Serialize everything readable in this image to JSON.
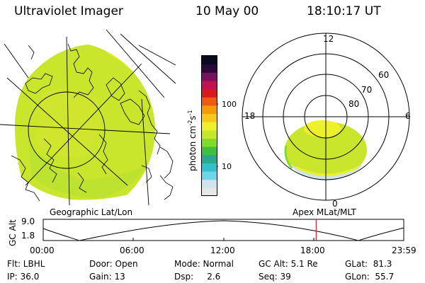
{
  "header": {
    "instrument": "Ultraviolet Imager",
    "date": "10 May 00",
    "time": "18:10:17 UT"
  },
  "colorbar": {
    "unit_label": "photon cm",
    "unit_exp1": "-2",
    "unit_s": "s",
    "unit_exp2": "-1",
    "tick_100": "100",
    "tick_10": "10",
    "colors": [
      "#e6e6e6",
      "#cfe4ee",
      "#6cd6e6",
      "#33c0cc",
      "#2aa88c",
      "#3fbf3f",
      "#7fdc2a",
      "#c6e62a",
      "#eef02a",
      "#f6c81c",
      "#f69a0c",
      "#ee5a10",
      "#d8181c",
      "#c01250",
      "#7a1060",
      "#2a0a3a",
      "#0a0a1e"
    ]
  },
  "panels": {
    "left_caption": "Geographic Lat/Lon",
    "right_caption": "Apex MLat/MLT"
  },
  "polar": {
    "mlt_top": "12",
    "mlt_left": "18",
    "mlt_right": "6",
    "mlt_bottom": "0",
    "lat_60": "60",
    "lat_70": "70",
    "lat_80": "80"
  },
  "altitude_plot": {
    "axis_label": "GC Alt",
    "y_max": "9.0",
    "y_min": "1.8",
    "x_ticks": [
      "00:00",
      "06:00",
      "12:00",
      "18:00",
      "23:59"
    ],
    "current_time_fraction": 0.757
  },
  "info": {
    "row1": {
      "flt": "Flt: LBHL",
      "door": "Door: Open",
      "mode": "Mode: Normal",
      "gc_alt": "GC Alt: 5.1 Re",
      "glat": "GLat:  81.3"
    },
    "row2": {
      "ip": "IP: 36.0",
      "gain": "Gain: 13",
      "dsp": "Dsp:     2.6",
      "seq": "Seq: 39",
      "glon": "GLon:  55.7"
    }
  }
}
